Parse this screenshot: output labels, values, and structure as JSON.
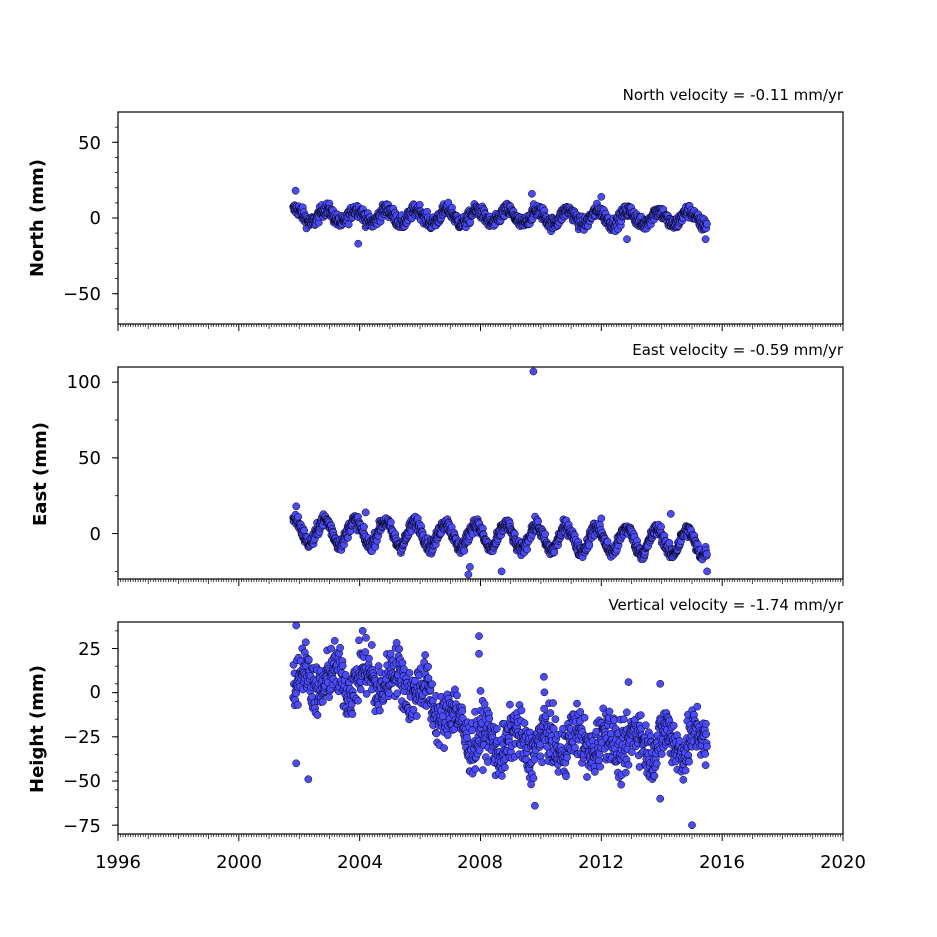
{
  "figure": {
    "x_ticks": [
      "1996",
      "2000",
      "2004",
      "2008",
      "2012",
      "2016",
      "2020"
    ]
  },
  "chart_data": [
    {
      "type": "scatter",
      "title": "North velocity = -0.11 mm/yr",
      "ylabel": "North (mm)",
      "xlim": [
        1996,
        2020
      ],
      "ylim": [
        -70,
        70
      ],
      "y_ticks": [
        "50",
        "0",
        "−50"
      ],
      "marker_color": "#4a4aff",
      "edge_color": "#000000",
      "model": {
        "start": 2001.8,
        "end": 2015.5,
        "offset": 1.5,
        "velocity": -0.11,
        "amplitude": 4.5,
        "phase": 1.0,
        "scatter": 2.2
      },
      "outliers": [
        [
          2001.88,
          18
        ],
        [
          2003.95,
          -17
        ],
        [
          2009.7,
          16
        ],
        [
          2012.0,
          14
        ],
        [
          2012.85,
          -14
        ],
        [
          2015.45,
          -14
        ]
      ]
    },
    {
      "type": "scatter",
      "title": "East velocity = -0.59 mm/yr",
      "ylabel": "East (mm)",
      "xlim": [
        1996,
        2020
      ],
      "ylim": [
        -30,
        110
      ],
      "y_ticks": [
        "100",
        "50",
        "0"
      ],
      "marker_color": "#4a4aff",
      "edge_color": "#000000",
      "model": {
        "start": 2001.8,
        "end": 2015.5,
        "offset": 2.0,
        "velocity": -0.59,
        "amplitude": 8.0,
        "phase": 1.3,
        "scatter": 2.2
      },
      "outliers": [
        [
          2001.9,
          18
        ],
        [
          2004.2,
          14
        ],
        [
          2007.6,
          -27
        ],
        [
          2007.65,
          -22
        ],
        [
          2008.7,
          -25
        ],
        [
          2009.75,
          107
        ],
        [
          2012.0,
          10
        ],
        [
          2014.3,
          13
        ],
        [
          2015.5,
          -25
        ]
      ]
    },
    {
      "type": "scatter",
      "title": "Vertical velocity = -1.74 mm/yr",
      "ylabel": "Height (mm)",
      "xlim": [
        1996,
        2020
      ],
      "ylim": [
        -80,
        40
      ],
      "y_ticks": [
        "25",
        "0",
        "−25",
        "−50",
        "−75"
      ],
      "marker_color": "#4a4aff",
      "edge_color": "#000000",
      "model": {
        "start": 2001.8,
        "end": 2015.5,
        "offset": 5.0,
        "velocity": -1.74,
        "amplitude": 8.0,
        "phase": 0.6,
        "scatter": 7.5
      },
      "outliers": [
        [
          2001.9,
          38
        ],
        [
          2001.9,
          -40
        ],
        [
          2002.3,
          -49
        ],
        [
          2004.1,
          35
        ],
        [
          2004.4,
          27
        ],
        [
          2007.95,
          32
        ],
        [
          2007.95,
          22
        ],
        [
          2008.0,
          1
        ],
        [
          2009.8,
          -64
        ],
        [
          2010.1,
          9
        ],
        [
          2012.9,
          6
        ],
        [
          2013.95,
          5
        ],
        [
          2013.95,
          -60
        ],
        [
          2015.0,
          -75
        ]
      ]
    }
  ]
}
